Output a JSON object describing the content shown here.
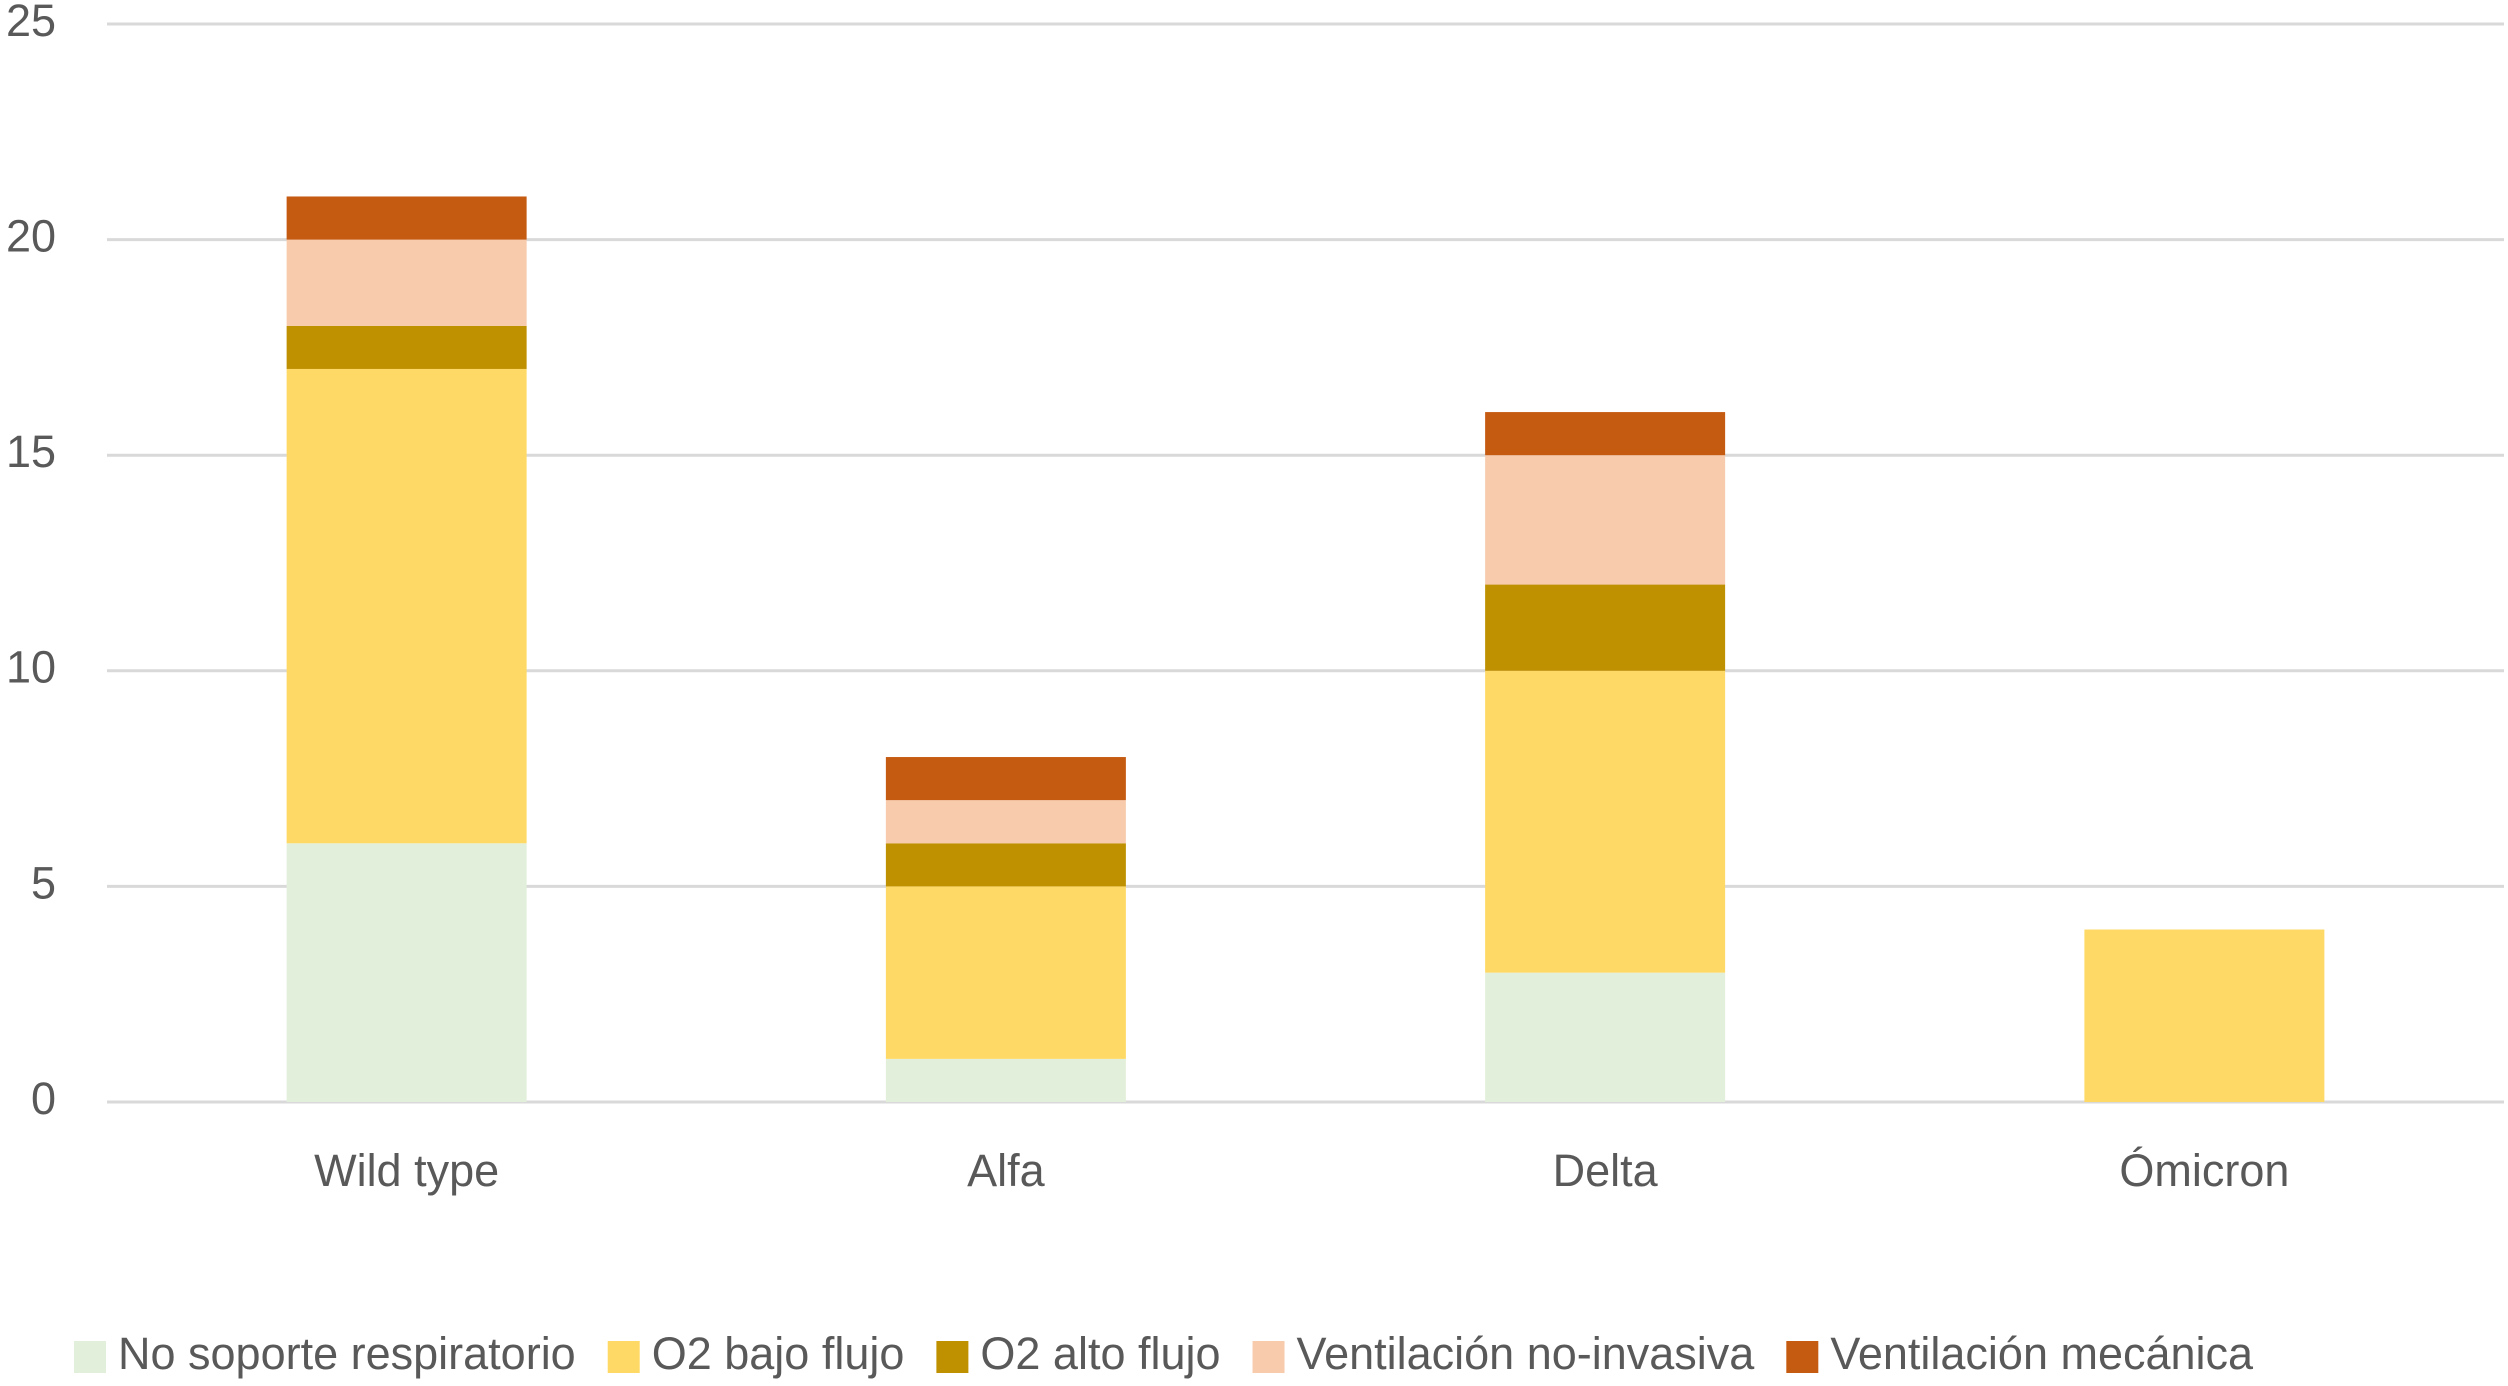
{
  "chart_data": {
    "type": "stacked_bar",
    "categories": [
      "Wild type",
      "Alfa",
      "Delta",
      "Ómicron"
    ],
    "series": [
      {
        "name": "No soporte respiratorio",
        "color": "#e2efda",
        "values": [
          6,
          1,
          3,
          0
        ]
      },
      {
        "name": "O2 bajo flujo",
        "color": "#ffd966",
        "values": [
          11,
          4,
          7,
          4
        ]
      },
      {
        "name": "O2 alto flujo",
        "color": "#bf9000",
        "values": [
          1,
          1,
          2,
          0
        ]
      },
      {
        "name": "Ventilación no-invasiva",
        "color": "#f8cbad",
        "values": [
          2,
          1,
          3,
          0
        ]
      },
      {
        "name": "Ventilación mecánica",
        "color": "#c55a11",
        "values": [
          1,
          1,
          1,
          0
        ]
      }
    ],
    "ylim": [
      0,
      25
    ],
    "yticks": [
      0,
      5,
      10,
      15,
      20,
      25
    ],
    "grid": true,
    "legend": "bottom"
  }
}
